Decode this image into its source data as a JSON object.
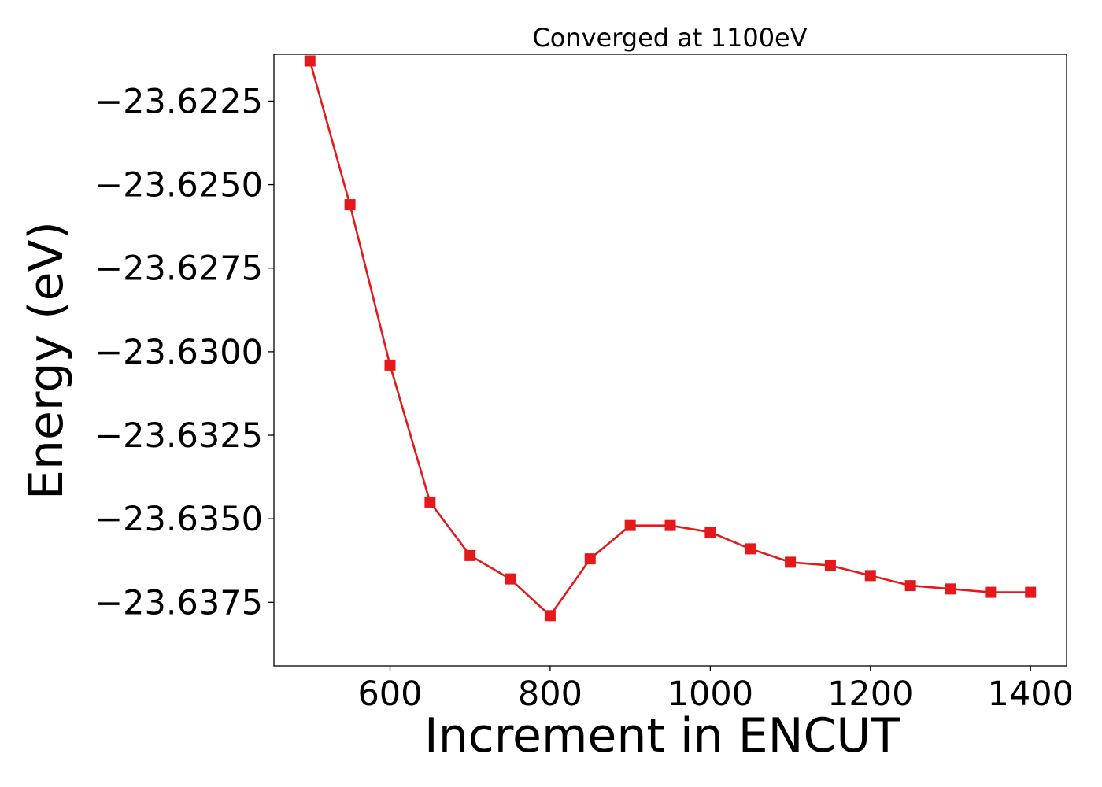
{
  "chart_data": {
    "type": "line",
    "title": "Converged at 1100eV",
    "xlabel": "Increment in ENCUT",
    "ylabel": "Energy (eV)",
    "xlim": [
      455,
      1445
    ],
    "ylim": [
      -23.6394,
      -23.6211
    ],
    "xticks": [
      600,
      800,
      1000,
      1200,
      1400
    ],
    "xtick_labels": [
      "600",
      "800",
      "1000",
      "1200",
      "1400"
    ],
    "yticks": [
      -23.6225,
      -23.625,
      -23.6275,
      -23.63,
      -23.6325,
      -23.635,
      -23.6375
    ],
    "ytick_labels": [
      "−23.6225",
      "−23.6250",
      "−23.6275",
      "−23.6300",
      "−23.6325",
      "−23.6350",
      "−23.6375"
    ],
    "grid": false,
    "legend": false,
    "series": [
      {
        "color": "#e31a1c",
        "marker": "square",
        "x": [
          500,
          550,
          600,
          650,
          700,
          750,
          800,
          850,
          900,
          950,
          1000,
          1050,
          1100,
          1150,
          1200,
          1250,
          1300,
          1350,
          1400
        ],
        "y": [
          -23.6213,
          -23.6256,
          -23.6304,
          -23.6345,
          -23.6361,
          -23.6368,
          -23.6379,
          -23.6362,
          -23.6352,
          -23.6352,
          -23.6354,
          -23.6359,
          -23.6363,
          -23.6364,
          -23.6367,
          -23.637,
          -23.6371,
          -23.6372,
          -23.6372
        ]
      }
    ]
  }
}
